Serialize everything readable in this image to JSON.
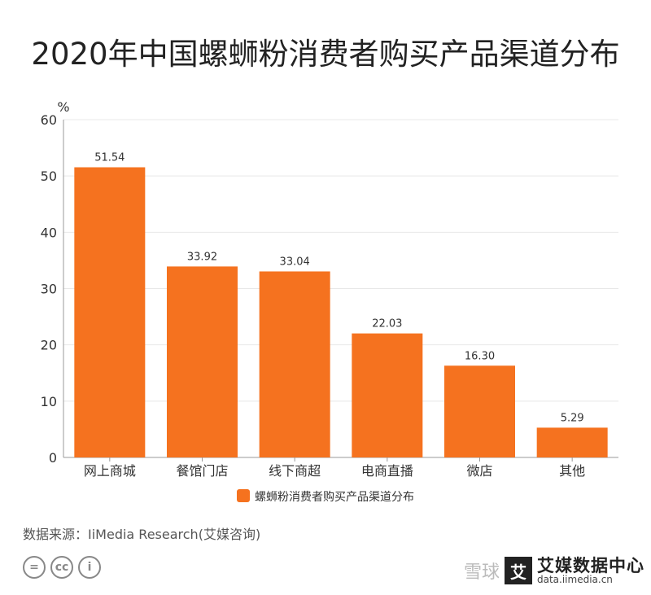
{
  "title": "2020年中国螺蛳粉消费者购买产品渠道分布",
  "source": "数据来源：IiMedia Research(艾媒咨询)",
  "watermark": {
    "left": "雪球",
    "badge": "艾",
    "brand": "艾媒数据中心",
    "url": "data.iimedia.cn"
  },
  "license_icons": [
    "equal-icon",
    "cc-icon",
    "person-icon"
  ],
  "colors": {
    "bar": "#F5721F",
    "grid": "#e8e8e8",
    "axis": "#999999"
  },
  "chart_data": {
    "type": "bar",
    "title": "2020年中国螺蛳粉消费者购买产品渠道分布",
    "ylabel": "%",
    "xlabel": "",
    "ylim": [
      0,
      60
    ],
    "yticks": [
      0,
      10,
      20,
      30,
      40,
      50,
      60
    ],
    "categories": [
      "网上商城",
      "餐馆门店",
      "线下商超",
      "电商直播",
      "微店",
      "其他"
    ],
    "series": [
      {
        "name": "螺蛳粉消费者购买产品渠道分布",
        "values": [
          51.54,
          33.92,
          33.04,
          22.03,
          16.3,
          5.29
        ],
        "labels": [
          "51.54",
          "33.92",
          "33.04",
          "22.03",
          "16.30",
          "5.29"
        ]
      }
    ],
    "grid": true,
    "legend": "bottom-center"
  }
}
